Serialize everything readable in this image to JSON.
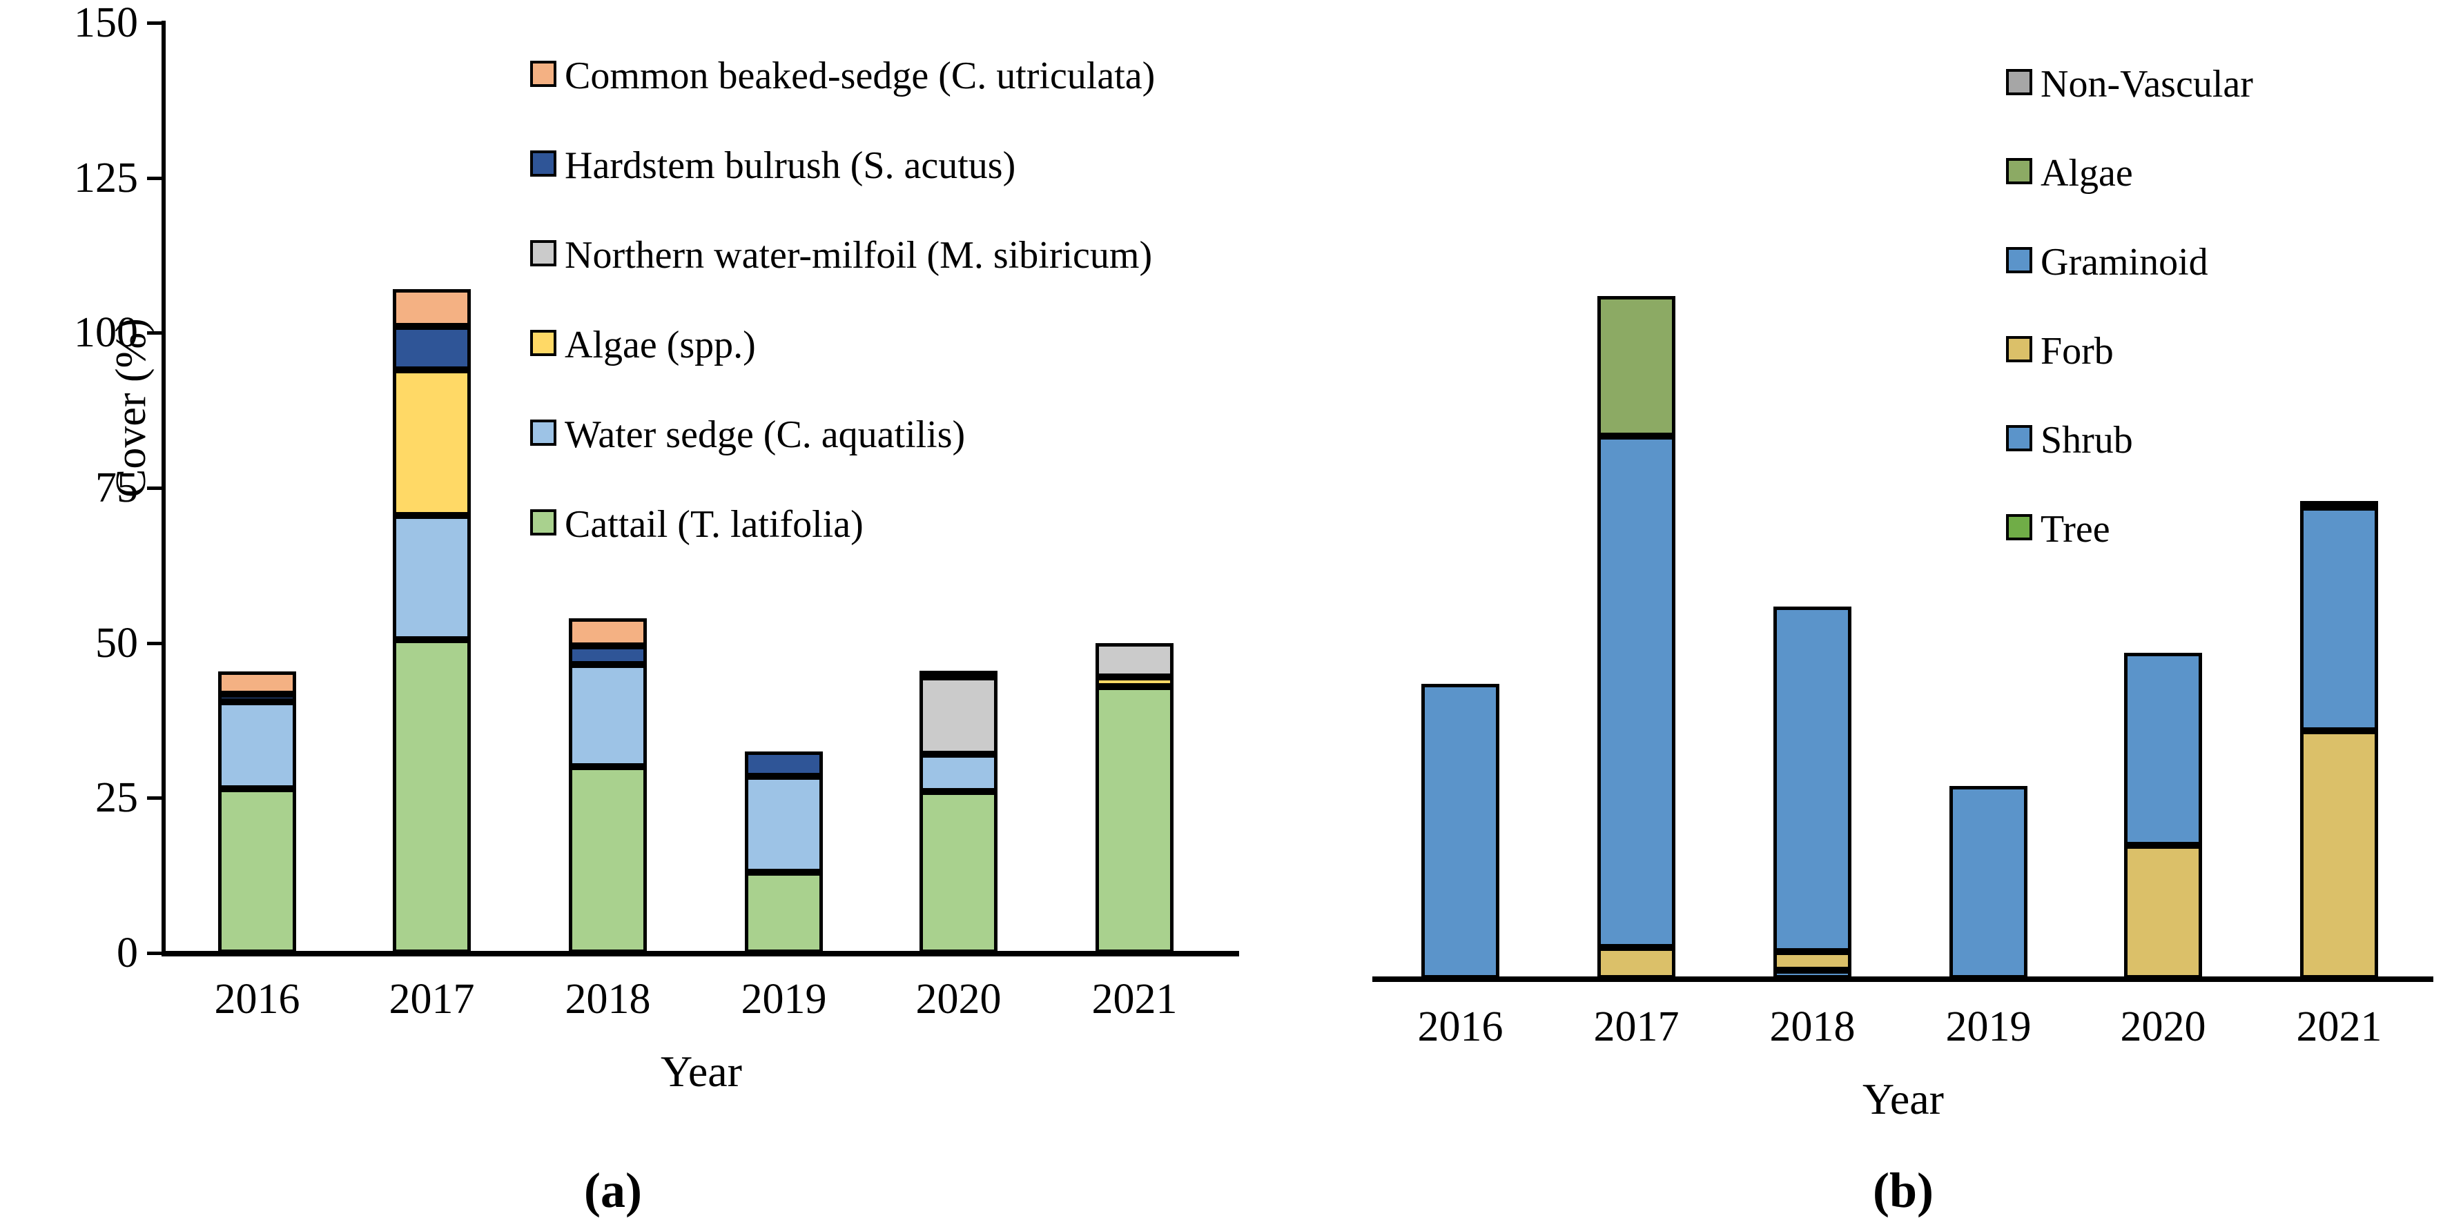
{
  "figure": {
    "captions": {
      "a": "(a)",
      "b": "(b)"
    },
    "ylabel": "Cover (%)",
    "xlabel": "Year",
    "y_ticks": [
      0,
      25,
      50,
      75,
      100,
      125,
      150
    ]
  },
  "colors": {
    "cattail": "#A9D18E",
    "water_sedge": "#9DC3E6",
    "algae_spp": "#FFD966",
    "milfoil": "#CBCBCB",
    "hardstem": "#2F5597",
    "beaked_sedge": "#F4B183",
    "graminoid": "#5B94CA",
    "forb": "#DBC069",
    "algae_form": "#8CAA64",
    "shrub": "#5B94CA",
    "tree": "#70AD47",
    "non_vascular": "#A6A6A6",
    "axis": "#000000"
  },
  "chart_data": [
    {
      "id": "panel-a",
      "type": "bar",
      "stacked": true,
      "title": "",
      "xlabel": "Year",
      "ylabel": "Cover (%)",
      "ylim": [
        0,
        150
      ],
      "grid": false,
      "legend_position": "upper-center-inside",
      "categories": [
        "2016",
        "2017",
        "2018",
        "2019",
        "2020",
        "2021"
      ],
      "series": [
        {
          "name": "Cattail (T. latifolia)",
          "color_key": "cattail",
          "values": [
            26.5,
            50.5,
            30.0,
            13.0,
            26.0,
            43.0
          ]
        },
        {
          "name": "Water sedge (C. aquatilis)",
          "color_key": "water_sedge",
          "values": [
            14.0,
            20.0,
            16.5,
            15.5,
            6.0,
            0.0
          ]
        },
        {
          "name": "Algae (spp.)",
          "color_key": "algae_spp",
          "values": [
            0.0,
            23.5,
            0.0,
            0.0,
            0.0,
            1.5
          ]
        },
        {
          "name": "Northern water-milfoil (M. sibiricum)",
          "color_key": "milfoil",
          "values": [
            0.0,
            0.0,
            0.0,
            0.0,
            12.5,
            5.5
          ]
        },
        {
          "name": "Hardstem bulrush (S. acutus)",
          "color_key": "hardstem",
          "values": [
            1.2,
            7.0,
            3.0,
            4.0,
            1.0,
            0.0
          ]
        },
        {
          "name": "Common beaked-sedge (C. utriculata)",
          "color_key": "beaked_sedge",
          "values": [
            3.7,
            6.0,
            4.5,
            0.0,
            0.0,
            0.0
          ]
        }
      ],
      "legend_order_top_to_bottom": [
        "Common beaked-sedge (C. utriculata)",
        "Hardstem bulrush (S. acutus)",
        "Northern water-milfoil (M. sibiricum)",
        "Algae (spp.)",
        "Water sedge (C. aquatilis)",
        "Cattail (T. latifolia)"
      ]
    },
    {
      "id": "panel-b",
      "type": "bar",
      "stacked": true,
      "title": "",
      "xlabel": "Year",
      "ylabel": "",
      "ylim": [
        0,
        150
      ],
      "grid": false,
      "legend_position": "upper-right-inside",
      "categories": [
        "2016",
        "2017",
        "2018",
        "2019",
        "2020",
        "2021"
      ],
      "series": [
        {
          "name": "Tree",
          "color_key": "tree",
          "values": [
            0.0,
            0.0,
            0.0,
            0.0,
            0.0,
            0.0
          ]
        },
        {
          "name": "Shrub",
          "color_key": "shrub",
          "values": [
            0.0,
            0.0,
            1.3,
            0.0,
            0.0,
            0.0
          ]
        },
        {
          "name": "Forb",
          "color_key": "forb",
          "values": [
            0.0,
            5.0,
            3.0,
            0.0,
            21.5,
            40.0
          ]
        },
        {
          "name": "Graminoid",
          "color_key": "graminoid",
          "values": [
            47.5,
            82.5,
            55.7,
            31.0,
            31.0,
            36.0
          ]
        },
        {
          "name": "Algae",
          "color_key": "algae_form",
          "values": [
            0.0,
            22.5,
            0.0,
            0.0,
            0.0,
            1.0
          ]
        },
        {
          "name": "Non-Vascular",
          "color_key": "non_vascular",
          "values": [
            0.0,
            0.0,
            0.0,
            0.0,
            0.0,
            0.0
          ]
        }
      ],
      "legend_order_top_to_bottom": [
        "Non-Vascular",
        "Algae",
        "Graminoid",
        "Forb",
        "Shrub",
        "Tree"
      ]
    }
  ]
}
